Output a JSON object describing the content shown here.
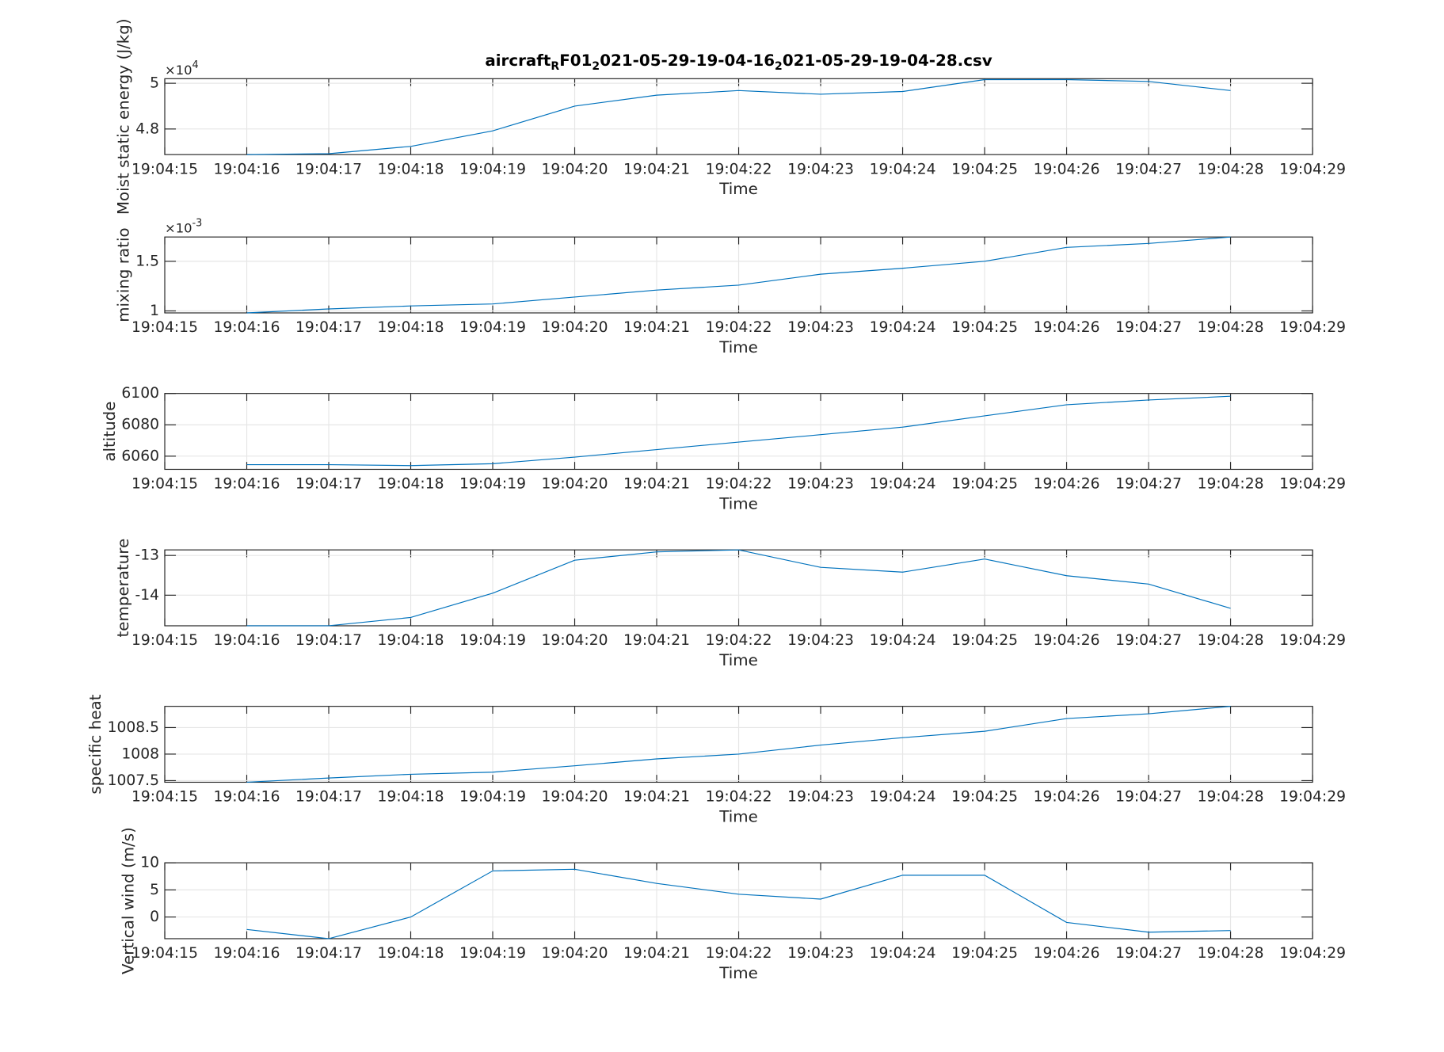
{
  "chart_data": [
    {
      "type": "line",
      "title_parts": [
        {
          "text": "aircraft"
        },
        {
          "text": "R",
          "sub": true
        },
        {
          "text": "F01"
        },
        {
          "text": "2",
          "sub": true
        },
        {
          "text": "021-05-29-19-04-16"
        },
        {
          "text": "2",
          "sub": true
        },
        {
          "text": "021-05-29-19-04-28.csv"
        }
      ],
      "xlabel": "Time",
      "ylabel": "Moist static energy (J/kg)",
      "y_multiplier": {
        "base": "×10",
        "exponent": 4
      },
      "x": [
        "19:04:16",
        "19:04:17",
        "19:04:18",
        "19:04:19",
        "19:04:20",
        "19:04:21",
        "19:04:22",
        "19:04:23",
        "19:04:24",
        "19:04:25",
        "19:04:26",
        "19:04:27",
        "19:04:28"
      ],
      "xlim": [
        "19:04:15",
        "19:04:29"
      ],
      "xticks": [
        "19:04:15",
        "19:04:16",
        "19:04:17",
        "19:04:18",
        "19:04:19",
        "19:04:20",
        "19:04:21",
        "19:04:22",
        "19:04:23",
        "19:04:24",
        "19:04:25",
        "19:04:26",
        "19:04:27",
        "19:04:28",
        "19:04:29"
      ],
      "series": [
        {
          "color": "#0072bd",
          "values": [
            4.688,
            4.692,
            4.724,
            4.792,
            4.9,
            4.948,
            4.968,
            4.952,
            4.964,
            5.016,
            5.016,
            5.008,
            4.968
          ]
        }
      ],
      "ylim": [
        4.688,
        5.02
      ],
      "yticks": [
        4.8,
        5
      ],
      "grid": true
    },
    {
      "type": "line",
      "xlabel": "Time",
      "ylabel": "mixing ratio",
      "y_multiplier": {
        "base": "×10",
        "exponent": -3
      },
      "x": [
        "19:04:16",
        "19:04:17",
        "19:04:18",
        "19:04:19",
        "19:04:20",
        "19:04:21",
        "19:04:22",
        "19:04:23",
        "19:04:24",
        "19:04:25",
        "19:04:26",
        "19:04:27",
        "19:04:28"
      ],
      "xlim": [
        "19:04:15",
        "19:04:29"
      ],
      "xticks": [
        "19:04:15",
        "19:04:16",
        "19:04:17",
        "19:04:18",
        "19:04:19",
        "19:04:20",
        "19:04:21",
        "19:04:22",
        "19:04:23",
        "19:04:24",
        "19:04:25",
        "19:04:26",
        "19:04:27",
        "19:04:28",
        "19:04:29"
      ],
      "series": [
        {
          "color": "#0072bd",
          "values": [
            0.98,
            1.02,
            1.05,
            1.07,
            1.14,
            1.21,
            1.26,
            1.37,
            1.43,
            1.5,
            1.64,
            1.68,
            1.745
          ]
        }
      ],
      "ylim": [
        0.98,
        1.745
      ],
      "yticks": [
        1,
        1.5
      ],
      "grid": true
    },
    {
      "type": "line",
      "xlabel": "Time",
      "ylabel": "altitude",
      "x": [
        "19:04:16",
        "19:04:17",
        "19:04:18",
        "19:04:19",
        "19:04:20",
        "19:04:21",
        "19:04:22",
        "19:04:23",
        "19:04:24",
        "19:04:25",
        "19:04:26",
        "19:04:27",
        "19:04:28"
      ],
      "xlim": [
        "19:04:15",
        "19:04:29"
      ],
      "xticks": [
        "19:04:15",
        "19:04:16",
        "19:04:17",
        "19:04:18",
        "19:04:19",
        "19:04:20",
        "19:04:21",
        "19:04:22",
        "19:04:23",
        "19:04:24",
        "19:04:25",
        "19:04:26",
        "19:04:27",
        "19:04:28",
        "19:04:29"
      ],
      "series": [
        {
          "color": "#0072bd",
          "values": [
            6054.6,
            6054.6,
            6054,
            6055.2,
            6059.4,
            6064.2,
            6069,
            6073.7,
            6078.5,
            6085.7,
            6092.8,
            6095.8,
            6098.2
          ]
        }
      ],
      "ylim": [
        6051.6,
        6100
      ],
      "yticks": [
        6060,
        6080,
        6100
      ],
      "grid": true
    },
    {
      "type": "line",
      "xlabel": "Time",
      "ylabel": "temperature",
      "x": [
        "19:04:16",
        "19:04:17",
        "19:04:18",
        "19:04:19",
        "19:04:20",
        "19:04:21",
        "19:04:22",
        "19:04:23",
        "19:04:24",
        "19:04:25",
        "19:04:26",
        "19:04:27",
        "19:04:28"
      ],
      "xlim": [
        "19:04:15",
        "19:04:29"
      ],
      "xticks": [
        "19:04:15",
        "19:04:16",
        "19:04:17",
        "19:04:18",
        "19:04:19",
        "19:04:20",
        "19:04:21",
        "19:04:22",
        "19:04:23",
        "19:04:24",
        "19:04:25",
        "19:04:26",
        "19:04:27",
        "19:04:28",
        "19:04:29"
      ],
      "series": [
        {
          "color": "#0072bd",
          "values": [
            -14.77,
            -14.77,
            -14.56,
            -13.95,
            -13.12,
            -12.91,
            -12.86,
            -13.3,
            -13.42,
            -13.09,
            -13.51,
            -13.72,
            -14.33
          ]
        }
      ],
      "ylim": [
        -14.77,
        -12.86
      ],
      "yticks": [
        -14,
        -13
      ],
      "grid": true
    },
    {
      "type": "line",
      "xlabel": "Time",
      "ylabel": "specific heat",
      "x": [
        "19:04:16",
        "19:04:17",
        "19:04:18",
        "19:04:19",
        "19:04:20",
        "19:04:21",
        "19:04:22",
        "19:04:23",
        "19:04:24",
        "19:04:25",
        "19:04:26",
        "19:04:27",
        "19:04:28"
      ],
      "xlim": [
        "19:04:15",
        "19:04:29"
      ],
      "xticks": [
        "19:04:15",
        "19:04:16",
        "19:04:17",
        "19:04:18",
        "19:04:19",
        "19:04:20",
        "19:04:21",
        "19:04:22",
        "19:04:23",
        "19:04:24",
        "19:04:25",
        "19:04:26",
        "19:04:27",
        "19:04:28",
        "19:04:29"
      ],
      "series": [
        {
          "color": "#0072bd",
          "values": [
            1007.47,
            1007.55,
            1007.62,
            1007.66,
            1007.78,
            1007.91,
            1008,
            1008.17,
            1008.31,
            1008.43,
            1008.67,
            1008.76,
            1008.9
          ]
        }
      ],
      "ylim": [
        1007.47,
        1008.9
      ],
      "yticks": [
        1007.5,
        1008,
        1008.5
      ],
      "grid": true
    },
    {
      "type": "line",
      "xlabel": "Time",
      "ylabel": "Vertical wind (m/s)",
      "x": [
        "19:04:16",
        "19:04:17",
        "19:04:18",
        "19:04:19",
        "19:04:20",
        "19:04:21",
        "19:04:22",
        "19:04:23",
        "19:04:24",
        "19:04:25",
        "19:04:26",
        "19:04:27",
        "19:04:28"
      ],
      "xlim": [
        "19:04:15",
        "19:04:29"
      ],
      "xticks": [
        "19:04:15",
        "19:04:16",
        "19:04:17",
        "19:04:18",
        "19:04:19",
        "19:04:20",
        "19:04:21",
        "19:04:22",
        "19:04:23",
        "19:04:24",
        "19:04:25",
        "19:04:26",
        "19:04:27",
        "19:04:28",
        "19:04:29"
      ],
      "series": [
        {
          "color": "#0072bd",
          "values": [
            -2.3,
            -4,
            0,
            8.5,
            8.8,
            6.2,
            4.2,
            3.3,
            7.7,
            7.7,
            -1,
            -2.8,
            -2.5
          ]
        }
      ],
      "ylim": [
        -4,
        10
      ],
      "yticks": [
        0,
        5,
        10
      ],
      "grid": true
    }
  ]
}
